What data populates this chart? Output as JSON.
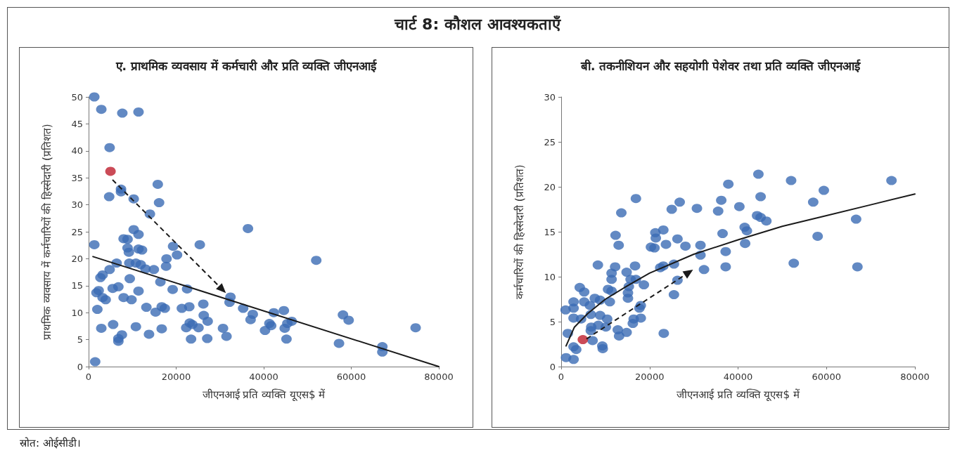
{
  "chart_data": [
    {
      "type": "other",
      "title": "चार्ट 8: कौशल आवश्यकताएँ"
    },
    {
      "type": "scatter",
      "title": "ए. प्राथमिक व्यवसाय में कर्मचारी और प्रति व्यक्ति जीएनआई",
      "xlabel": "जीएनआई प्रति व्यक्ति यूएस$ में",
      "ylabel": "प्राथमिक व्यवसाय में कर्मचारियों की हिस्सेदारी (प्रतिशत)",
      "xlim": [
        0,
        80000
      ],
      "xticks": [
        0,
        20000,
        40000,
        60000,
        80000
      ],
      "ylim": [
        0,
        50
      ],
      "yticks": [
        0,
        5,
        10,
        15,
        20,
        25,
        30,
        35,
        40,
        45,
        50
      ],
      "grid": false,
      "legend": false,
      "marker": "circle",
      "annotations": [
        "स्रोत: ओईसीडी।"
      ],
      "series": [
        {
          "type": "scatter",
          "color": "#3b6cb4",
          "x": [
            1300,
            2900,
            7700,
            11400,
            4800,
            15800,
            7400,
            7400,
            4700,
            10300,
            16100,
            14000,
            36400,
            10300,
            11400,
            8000,
            8900,
            1300,
            25400,
            8900,
            11400,
            12200,
            19300,
            20200,
            52000,
            17800,
            9200,
            6400,
            9300,
            10800,
            11900,
            17700,
            13000,
            14900,
            4800,
            3200,
            2700,
            9400,
            16400,
            5500,
            19200,
            6800,
            22500,
            11400,
            1800,
            2300,
            3200,
            8000,
            9800,
            3900,
            32400,
            32200,
            26200,
            13200,
            16700,
            17400,
            15300,
            21300,
            23000,
            35300,
            2000,
            42300,
            44600,
            37500,
            37000,
            58100,
            59400,
            26300,
            46400,
            45400,
            41300,
            41700,
            23100,
            23700,
            27200,
            22300,
            25100,
            5600,
            10800,
            2900,
            16700,
            30700,
            44800,
            40300,
            74700,
            13800,
            7600,
            6800,
            6800,
            31500,
            27100,
            23400,
            45200,
            57200,
            67100,
            67100,
            1500
          ],
          "values": [
            50,
            47.7,
            47,
            47.2,
            40.6,
            33.8,
            32.9,
            32.4,
            31.5,
            31.1,
            30.4,
            28.3,
            25.6,
            25.4,
            24.5,
            23.7,
            23.6,
            22.6,
            22.6,
            22,
            21.8,
            21.6,
            22.3,
            20.7,
            19.7,
            20,
            21.2,
            19.2,
            19.2,
            19.2,
            18.9,
            18.6,
            18.1,
            18,
            18,
            17,
            16.5,
            16.3,
            15.7,
            14.5,
            14.3,
            14.8,
            14.4,
            14,
            13.7,
            14.1,
            12.8,
            12.8,
            12.4,
            12.4,
            12.9,
            11.9,
            11.6,
            11,
            11.1,
            10.8,
            10.1,
            10.8,
            11.1,
            10.8,
            10.6,
            10,
            10.4,
            9.7,
            8.7,
            9.6,
            8.6,
            9.5,
            8.4,
            8,
            8,
            7.6,
            8.1,
            7.8,
            8.4,
            7.2,
            7.2,
            7.8,
            7.4,
            7.1,
            7,
            7.1,
            7.1,
            6.7,
            7.2,
            6,
            5.9,
            5.2,
            4.7,
            5.6,
            5.2,
            5.1,
            5.1,
            4.3,
            3.7,
            2.7,
            0.9
          ]
        },
        {
          "type": "scatter",
          "color": "#be1e2d",
          "x": [
            5000
          ],
          "values": [
            36.2
          ]
        },
        {
          "type": "line",
          "color": "#1a1a1a",
          "marker": "none",
          "line_style": "solid",
          "x": [
            1000,
            80000
          ],
          "values": [
            20.4,
            0
          ]
        }
      ]
    },
    {
      "type": "scatter",
      "title": "बी. तकनीशियन और सहयोगी पेशेवर तथा प्रति व्यक्ति जीएनआई",
      "xlabel": "जीएनआई प्रति व्यक्ति यूएस$ में",
      "ylabel": "कर्मचारियों की हिस्सेदारी (प्रतिशत)",
      "xlim": [
        0,
        80000
      ],
      "xticks": [
        0,
        20000,
        40000,
        60000,
        80000
      ],
      "ylim": [
        0,
        30
      ],
      "yticks": [
        0,
        5,
        10,
        15,
        20,
        25,
        30
      ],
      "grid": false,
      "legend": false,
      "marker": "circle",
      "series": [
        {
          "type": "scatter",
          "color": "#3b6cb4",
          "x": [
            44600,
            52000,
            74700,
            37800,
            59400,
            16900,
            45100,
            57000,
            26800,
            36200,
            25000,
            30700,
            40300,
            35500,
            13600,
            44300,
            45100,
            46400,
            66700,
            12300,
            21300,
            23100,
            21400,
            26300,
            36500,
            41500,
            42000,
            58000,
            13000,
            20300,
            21100,
            23700,
            28100,
            31500,
            41600,
            37200,
            31500,
            8300,
            12200,
            16700,
            22400,
            23100,
            25500,
            32300,
            37200,
            52600,
            67000,
            11400,
            14800,
            11400,
            15700,
            16900,
            26300,
            18700,
            4200,
            5200,
            15300,
            10600,
            11400,
            25500,
            15100,
            15100,
            2800,
            5200,
            7600,
            8800,
            11000,
            6500,
            1000,
            2800,
            18000,
            17700,
            6700,
            8800,
            2800,
            4500,
            10400,
            16400,
            18000,
            16200,
            6800,
            8400,
            10100,
            12800,
            14800,
            23200,
            1500,
            13100,
            7100,
            2800,
            3400,
            9300,
            9400,
            1100,
            2800,
            6700
          ],
          "values": [
            21.4,
            20.7,
            20.7,
            20.3,
            19.6,
            18.7,
            18.9,
            18.3,
            18.3,
            18.5,
            17.5,
            17.6,
            17.8,
            17.3,
            17.1,
            16.8,
            16.6,
            16.2,
            16.4,
            14.6,
            14.9,
            15.2,
            14.3,
            14.2,
            14.8,
            15.5,
            15.1,
            14.5,
            13.5,
            13.3,
            13.2,
            13.6,
            13.4,
            13.5,
            13.7,
            12.8,
            12.4,
            11.3,
            11.1,
            11.2,
            11,
            11.2,
            11.4,
            10.8,
            11.1,
            11.5,
            11.1,
            10.4,
            10.5,
            9.7,
            9.7,
            9.7,
            9.6,
            9.1,
            8.8,
            8.3,
            8.9,
            8.6,
            8.4,
            8,
            8.2,
            7.6,
            7.2,
            7.2,
            7.6,
            7.4,
            7.2,
            6.8,
            6.3,
            6.5,
            6.8,
            6.5,
            5.8,
            5.7,
            5.4,
            5.3,
            5.3,
            5.3,
            5.4,
            4.8,
            4.4,
            4.6,
            4.4,
            4.1,
            3.8,
            3.7,
            3.7,
            3.4,
            2.9,
            2.2,
            1.9,
            2.3,
            2,
            1,
            0.8,
            4
          ]
        },
        {
          "type": "scatter",
          "color": "#be1e2d",
          "x": [
            4900
          ],
          "values": [
            3
          ]
        },
        {
          "type": "line",
          "color": "#1a1a1a",
          "marker": "none",
          "line_style": "solid",
          "x": [
            1100,
            3000,
            6000,
            10000,
            15000,
            20000,
            30000,
            40000,
            50000,
            60000,
            70000,
            80000
          ],
          "values": [
            2.3,
            4.4,
            5.9,
            7.5,
            9,
            10.4,
            12.5,
            14.1,
            15.6,
            16.8,
            18,
            19.2
          ]
        }
      ]
    }
  ]
}
